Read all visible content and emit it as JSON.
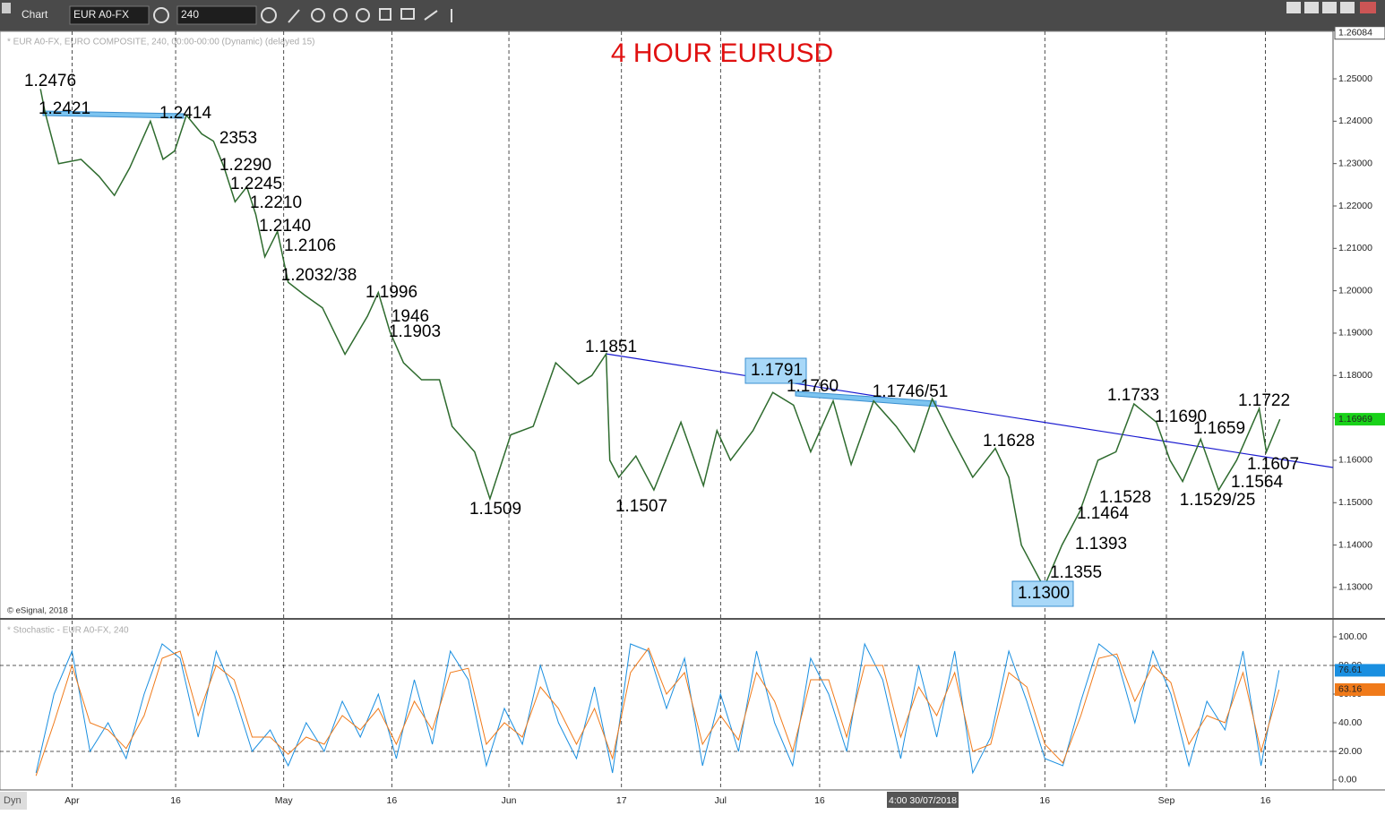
{
  "ui": {
    "window_title": "Chart",
    "symbol": "EUR A0-FX",
    "interval": "240",
    "info": "* EUR A0-FX, EURO COMPOSITE, 240, 00:00-00:00 (Dynamic) (delayed 15)",
    "copyright": "© eSignal, 2018",
    "stoch_info": "* Stochastic - EUR A0-FX, 240",
    "dyn": "Dyn",
    "crosshair_label": "4:00 30/07/2018"
  },
  "chart_data": [
    {
      "type": "line",
      "title": "4 HOUR EURUSD",
      "x": [
        -3.5,
        -3,
        -1.5,
        1,
        3,
        4.7,
        6.4,
        8.7,
        10.1,
        11.4,
        12.7,
        14.4,
        15.7,
        16.9,
        18.1,
        19.4,
        20.4,
        21.4,
        22.8,
        24,
        25.8,
        27.8,
        30.3,
        32.8,
        34,
        35.3,
        36.8,
        38.8,
        40.8,
        42.2,
        44.7,
        46.4,
        48.7,
        51.2,
        53.7,
        56.2,
        57.7,
        59.3,
        59.7,
        60.7,
        62.6,
        64.6,
        67.6,
        70.1,
        71.6,
        73.1,
        75.6,
        77.8,
        80.1,
        82,
        84.5,
        86.5,
        89,
        91.5,
        93.5,
        95.5,
        97.5,
        100,
        102.5,
        104,
        105.4,
        107.9,
        109.9,
        111.9,
        113.9,
        115.9,
        117.9,
        120.4,
        121.9,
        123.3,
        125.3,
        127.3,
        129.3,
        131.8,
        132.6,
        134.1
      ],
      "values": [
        1.2476,
        1.2421,
        1.23,
        1.231,
        1.227,
        1.2225,
        1.229,
        1.24,
        1.231,
        1.233,
        1.2414,
        1.237,
        1.2353,
        1.229,
        1.221,
        1.2245,
        1.218,
        1.208,
        1.214,
        1.202,
        1.199,
        1.196,
        1.185,
        1.194,
        1.1996,
        1.1903,
        1.183,
        1.179,
        1.179,
        1.168,
        1.162,
        1.1509,
        1.166,
        1.168,
        1.183,
        1.178,
        1.18,
        1.1851,
        1.16,
        1.156,
        1.161,
        1.153,
        1.169,
        1.154,
        1.167,
        1.16,
        1.167,
        1.176,
        1.173,
        1.162,
        1.174,
        1.159,
        1.174,
        1.168,
        1.162,
        1.1745,
        1.166,
        1.156,
        1.1628,
        1.156,
        1.14,
        1.13,
        1.14,
        1.148,
        1.16,
        1.162,
        1.1733,
        1.169,
        1.16,
        1.155,
        1.165,
        1.153,
        1.16,
        1.1722,
        1.162,
        1.16969
      ],
      "color": "#2e6b2e",
      "last_color": "#19d219",
      "xlim": [
        -8,
        140
      ],
      "ylim": [
        1.1228,
        1.2612
      ],
      "yticks": [
        {
          "value": 1.13,
          "label": "1.13000"
        },
        {
          "value": 1.14,
          "label": "1.14000"
        },
        {
          "value": 1.15,
          "label": "1.15000"
        },
        {
          "value": 1.16,
          "label": "1.16000"
        },
        {
          "value": 1.17,
          "label": "1.17000"
        },
        {
          "value": 1.18,
          "label": "1.18000"
        },
        {
          "value": 1.19,
          "label": "1.19000"
        },
        {
          "value": 1.2,
          "label": "1.20000"
        },
        {
          "value": 1.21,
          "label": "1.21000"
        },
        {
          "value": 1.22,
          "label": "1.22000"
        },
        {
          "value": 1.23,
          "label": "1.23000"
        },
        {
          "value": 1.24,
          "label": "1.24000"
        },
        {
          "value": 1.25,
          "label": "1.25000"
        }
      ],
      "high": 1.26084,
      "annotations": [
        "1.2476",
        "1.2421",
        "1.2414",
        "2353",
        "1.2290",
        "1.2245",
        "1.2210",
        "1.2140",
        "1.2106",
        "1.2032/38",
        "1.1996",
        "1946",
        "1.1903",
        "1.1851",
        "1.1791",
        "1.1760",
        "1.1746/51",
        "1.1733",
        "1.1690",
        "1.1659",
        "1.1722",
        "1.1628",
        "1.1607",
        "1.1564",
        "1.1529/25",
        "1.1528",
        "1.1464",
        "1.1393",
        "1.1355",
        "1.1300",
        "1.1509",
        "1.1507"
      ]
    },
    {
      "type": "line",
      "x": [
        -4,
        -2,
        0,
        2,
        4,
        6,
        8,
        10,
        12,
        14,
        16,
        18,
        20,
        22,
        24,
        26,
        28,
        30,
        32,
        34,
        36,
        38,
        40,
        42,
        44,
        46,
        48,
        50,
        52,
        54,
        56,
        58,
        60,
        62,
        64,
        66,
        68,
        70,
        72,
        74,
        76,
        78,
        80,
        82,
        84,
        86,
        88,
        90,
        92,
        94,
        96,
        98,
        100,
        102,
        104,
        106,
        108,
        110,
        112,
        114,
        116,
        118,
        120,
        122,
        124,
        126,
        128,
        130,
        132,
        134
      ],
      "series": [
        {
          "color": "#1a8fe0",
          "values": [
            5,
            60,
            90,
            20,
            40,
            15,
            60,
            95,
            85,
            30,
            90,
            60,
            20,
            35,
            10,
            40,
            20,
            55,
            30,
            60,
            15,
            70,
            25,
            90,
            70,
            10,
            50,
            25,
            80,
            40,
            15,
            65,
            5,
            95,
            90,
            50,
            85,
            10,
            60,
            20,
            90,
            40,
            10,
            85,
            60,
            20,
            95,
            70,
            15,
            80,
            30,
            90,
            5,
            30,
            90,
            55,
            15,
            10,
            55,
            95,
            85,
            40,
            90,
            60,
            10,
            55,
            35,
            90,
            10,
            76.61
          ]
        },
        {
          "color": "#f07a1a",
          "values": [
            3,
            40,
            80,
            40,
            35,
            22,
            45,
            85,
            90,
            45,
            80,
            70,
            30,
            30,
            18,
            30,
            25,
            45,
            35,
            50,
            25,
            55,
            35,
            75,
            78,
            25,
            40,
            30,
            65,
            50,
            25,
            50,
            15,
            75,
            92,
            60,
            75,
            25,
            45,
            28,
            75,
            55,
            20,
            70,
            70,
            30,
            80,
            80,
            30,
            65,
            45,
            75,
            20,
            25,
            75,
            65,
            25,
            12,
            45,
            85,
            88,
            55,
            80,
            68,
            25,
            45,
            40,
            75,
            20,
            63.16
          ]
        }
      ],
      "xlim": [
        -8,
        140
      ],
      "ylim": [
        -6.9,
        111.9
      ],
      "yticks": [
        {
          "value": 0,
          "label": "0.00"
        },
        {
          "value": 20,
          "label": "20.00"
        },
        {
          "value": 40,
          "label": "40.00"
        },
        {
          "value": 60,
          "label": "60.00"
        },
        {
          "value": 80,
          "label": "80.00"
        },
        {
          "value": 100,
          "label": "100.00"
        }
      ],
      "hlines": [
        20,
        80
      ],
      "xticks": [
        {
          "value": 0,
          "label": "Apr"
        },
        {
          "value": 11.5,
          "label": "16"
        },
        {
          "value": 23.5,
          "label": "May"
        },
        {
          "value": 35.5,
          "label": "16"
        },
        {
          "value": 48.5,
          "label": "Jun"
        },
        {
          "value": 61,
          "label": "17"
        },
        {
          "value": 72,
          "label": "Jul"
        },
        {
          "value": 83,
          "label": "16"
        },
        {
          "value": 108,
          "label": "16"
        },
        {
          "value": 121.5,
          "label": "Sep"
        },
        {
          "value": 132.5,
          "label": "16"
        }
      ]
    }
  ]
}
